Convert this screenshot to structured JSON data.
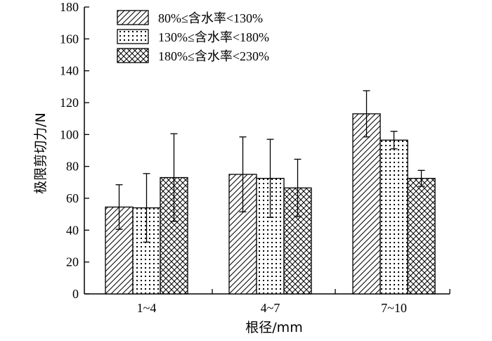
{
  "chart_data": {
    "type": "bar",
    "xlabel": "根径/mm",
    "ylabel": "极限剪切力/N",
    "categories": [
      "1~4",
      "4~7",
      "7~10"
    ],
    "ylim": [
      0,
      180
    ],
    "yticks": [
      0,
      20,
      40,
      60,
      80,
      100,
      120,
      140,
      160,
      180
    ],
    "grid": false,
    "legend_position": "top-left",
    "series": [
      {
        "name": "80%≤含水率<130%",
        "pattern": "diagonal-hatch",
        "values": [
          54.5,
          75,
          113
        ],
        "errors": [
          14,
          23.5,
          14.5
        ]
      },
      {
        "name": "130%≤含水率<180%",
        "pattern": "dots",
        "values": [
          54,
          72.5,
          96.5
        ],
        "errors": [
          21.5,
          24.5,
          5.5
        ]
      },
      {
        "name": "180%≤含水率<230%",
        "pattern": "cross-hatch",
        "values": [
          73,
          66.5,
          72.5
        ],
        "errors": [
          27.5,
          18,
          5
        ]
      }
    ]
  }
}
